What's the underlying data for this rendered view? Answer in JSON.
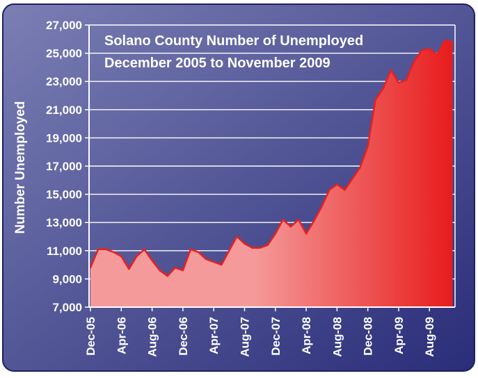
{
  "colors": {
    "background_light": "#7b7fb4",
    "background_dark": "#2a2d78",
    "area_light": "#f59a9a",
    "area_dark": "#e81c1c",
    "line": "#e82020",
    "text": "#ffffff"
  },
  "chart_data": {
    "type": "area",
    "title": "Solano County Number of Unemployed",
    "subtitle": "December 2005 to November 2009",
    "xlabel": "",
    "ylabel": "Number Unemployed",
    "ylim": [
      7000,
      27000
    ],
    "yticks": [
      "7,000",
      "9,000",
      "11,000",
      "13,000",
      "15,000",
      "17,000",
      "19,000",
      "21,000",
      "23,000",
      "25,000",
      "27,000"
    ],
    "xtick_labels": [
      "Dec-05",
      "Apr-06",
      "Aug-06",
      "Dec-06",
      "Apr-07",
      "Aug-07",
      "Dec-07",
      "Apr-08",
      "Aug-08",
      "Dec-08",
      "Apr-09",
      "Aug-09"
    ],
    "grid": "horizontal",
    "legend": "none",
    "x": [
      "Dec-05",
      "Jan-06",
      "Feb-06",
      "Mar-06",
      "Apr-06",
      "May-06",
      "Jun-06",
      "Jul-06",
      "Aug-06",
      "Sep-06",
      "Oct-06",
      "Nov-06",
      "Dec-06",
      "Jan-07",
      "Feb-07",
      "Mar-07",
      "Apr-07",
      "May-07",
      "Jun-07",
      "Jul-07",
      "Aug-07",
      "Sep-07",
      "Oct-07",
      "Nov-07",
      "Dec-07",
      "Jan-08",
      "Feb-08",
      "Mar-08",
      "Apr-08",
      "May-08",
      "Jun-08",
      "Jul-08",
      "Aug-08",
      "Sep-08",
      "Oct-08",
      "Nov-08",
      "Dec-08",
      "Jan-09",
      "Feb-09",
      "Mar-09",
      "Apr-09",
      "May-09",
      "Jun-09",
      "Jul-09",
      "Aug-09",
      "Sep-09",
      "Oct-09",
      "Nov-09"
    ],
    "values": [
      9800,
      11100,
      11100,
      10900,
      10600,
      9700,
      10600,
      11100,
      10300,
      9600,
      9200,
      9800,
      9600,
      11100,
      10900,
      10400,
      10200,
      10000,
      11000,
      12000,
      11500,
      11200,
      11200,
      11400,
      12200,
      13200,
      12700,
      13200,
      12200,
      13100,
      14100,
      15300,
      15700,
      15300,
      16100,
      16900,
      18400,
      21700,
      22500,
      23800,
      22900,
      23100,
      24400,
      25200,
      25300,
      24900,
      25900,
      25800
    ]
  }
}
